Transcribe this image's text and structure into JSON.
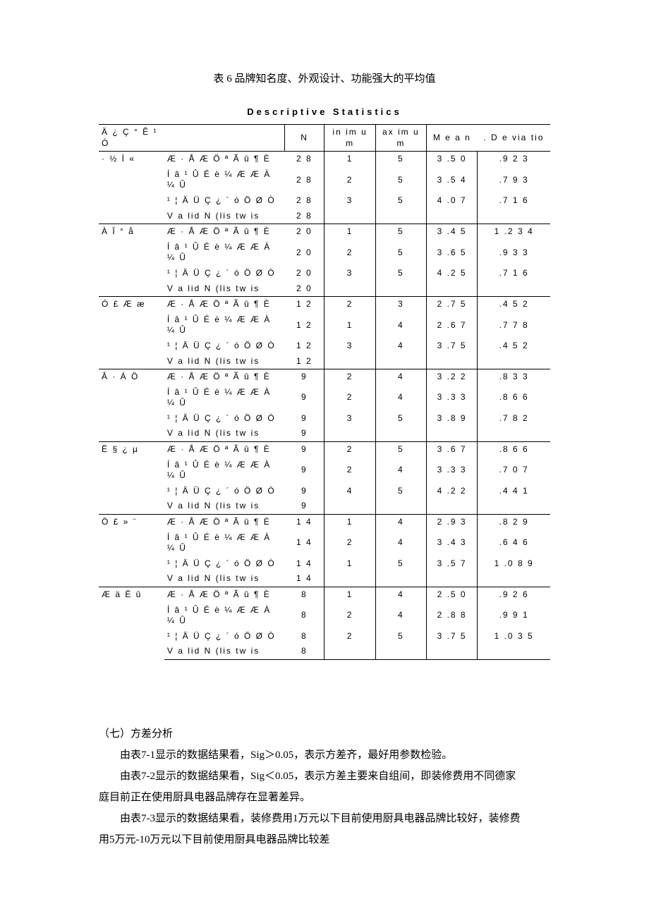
{
  "caption": "表 6  品牌知名度、外观设计、功能强大的平均值",
  "table_title": "Descriptive Statistics",
  "header_cat": "Ä ¿ Ç ° Ê ¹ Ó",
  "columns": [
    "N",
    "in im u m",
    "ax im u m",
    "M e a n",
    ". D e via tio"
  ],
  "var_labels": {
    "v1": "Æ · Å Æ  Ö ª Ã û ¶ È",
    "v2": "Í â ¹ Û É è ¼ Æ  Æ À ¼ Û",
    "v3": "¹ ¦ Ä Ü Ç ¿ ´ ó Ö Ø Ò",
    "vn": "V a lid  N  (lis tw is"
  },
  "groups": [
    {
      "cat": "· ½  Ì «",
      "rows": [
        {
          "n": "2 8",
          "min": "1",
          "max": "5",
          "mean": "3 .5 0",
          "std": ".9 2 3"
        },
        {
          "n": "2 8",
          "min": "2",
          "max": "5",
          "mean": "3 .5 4",
          "std": ".7 9 3"
        },
        {
          "n": "2 8",
          "min": "3",
          "max": "5",
          "mean": "4 .0 7",
          "std": ".7 1 6"
        },
        {
          "n": "2 8"
        }
      ]
    },
    {
      "cat": "À Ï ° å",
      "rows": [
        {
          "n": "2 0",
          "min": "1",
          "max": "5",
          "mean": "3 .4 5",
          "std": "1 .2 3 4"
        },
        {
          "n": "2 0",
          "min": "2",
          "max": "5",
          "mean": "3 .6 5",
          "std": ".9 3 3"
        },
        {
          "n": "2 0",
          "min": "3",
          "max": "5",
          "mean": "4 .2 5",
          "std": ".7 1 6"
        },
        {
          "n": "2 0"
        }
      ]
    },
    {
      "cat": "Ó £ Æ  æ",
      "rows": [
        {
          "n": "1 2",
          "min": "2",
          "max": "3",
          "mean": "2 .7 5",
          "std": ".4 5 2"
        },
        {
          "n": "1 2",
          "min": "1",
          "max": "4",
          "mean": "2 .6 7",
          "std": ".7 7 8"
        },
        {
          "n": "1 2",
          "min": "3",
          "max": "4",
          "mean": "3 .7 5",
          "std": ".4 5 2"
        },
        {
          "n": "1 2"
        }
      ]
    },
    {
      "cat": "Â · Á Ö",
      "rows": [
        {
          "n": "9",
          "min": "2",
          "max": "4",
          "mean": "3 .2 2",
          "std": ".8 3 3"
        },
        {
          "n": "9",
          "min": "2",
          "max": "4",
          "mean": "3 .3 3",
          "std": ".8 6 6"
        },
        {
          "n": "9",
          "min": "3",
          "max": "5",
          "mean": "3 .8 9",
          "std": ".7 8 2"
        },
        {
          "n": "9"
        }
      ]
    },
    {
      "cat": "Ë § ¿ µ",
      "rows": [
        {
          "n": "9",
          "min": "2",
          "max": "5",
          "mean": "3 .6 7",
          "std": ".8 6 6"
        },
        {
          "n": "9",
          "min": "2",
          "max": "4",
          "mean": "3 .3 3",
          "std": ".7 0 7"
        },
        {
          "n": "9",
          "min": "4",
          "max": "5",
          "mean": "4 .2 2",
          "std": ".4 4 1"
        },
        {
          "n": "9"
        }
      ]
    },
    {
      "cat": "Ö £ » ¨",
      "rows": [
        {
          "n": "1 4",
          "min": "1",
          "max": "4",
          "mean": "2 .9 3",
          "std": ".8 2 9"
        },
        {
          "n": "1 4",
          "min": "2",
          "max": "4",
          "mean": "3 .4 3",
          "std": ".6 4 6"
        },
        {
          "n": "1 4",
          "min": "1",
          "max": "5",
          "mean": "3 .5 7",
          "std": "1 .0 8 9"
        },
        {
          "n": "1 4"
        }
      ]
    },
    {
      "cat": "Æ  ä Ë û",
      "rows": [
        {
          "n": "8",
          "min": "1",
          "max": "4",
          "mean": "2 .5 0",
          "std": ".9 2 6"
        },
        {
          "n": "8",
          "min": "2",
          "max": "4",
          "mean": "2 .8 8",
          "std": ".9 9 1"
        },
        {
          "n": "8",
          "min": "2",
          "max": "5",
          "mean": "3 .7 5",
          "std": "1 .0 3 5"
        },
        {
          "n": "8"
        }
      ]
    }
  ],
  "para_heading": "（七）方差分析",
  "para1": "由表7-1显示的数据结果看，Sig＞0.05，表示方差齐，最好用参数检验。",
  "para2a": "由表7-2显示的数据结果看，Sig＜0.05，表示方差主要来自组间，即装修费用不同德家",
  "para2b": "庭目前正在使用厨具电器品牌存在显著差异。",
  "para3a": "由表7-3显示的数据结果看，装修费用1万元以下目前使用厨具电器品牌比较好，装修费",
  "para3b": "用5万元-10万元以下目前使用厨具电器品牌比较差"
}
